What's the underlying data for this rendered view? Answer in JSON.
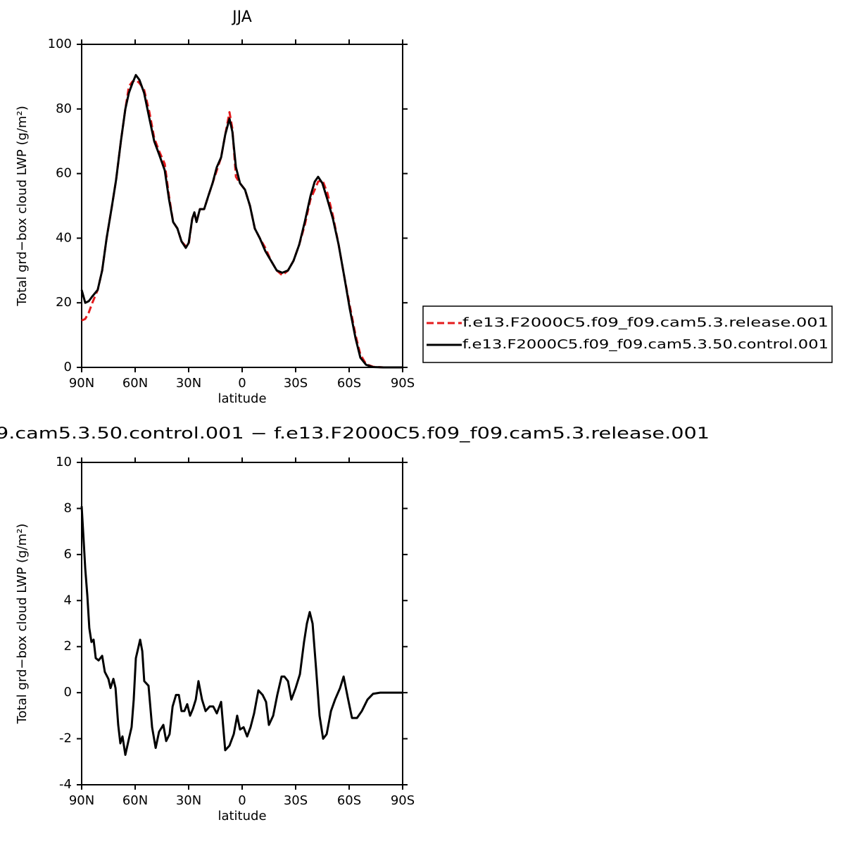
{
  "chart_data": [
    {
      "type": "line",
      "title": "JJA",
      "x_label": "latitude",
      "y_label": "Total grd−box cloud LWP (g/m²)",
      "x": [
        90,
        88,
        86,
        84,
        81,
        78.5,
        76,
        73,
        70.7,
        68,
        65.5,
        63.5,
        61.5,
        59.6,
        57.6,
        55,
        52,
        49.3,
        46.6,
        43.4,
        41,
        38.7,
        36.3,
        34,
        31.6,
        30,
        28,
        26.8,
        25.6,
        23.7,
        21.3,
        19,
        16.6,
        14.2,
        11.8,
        9.5,
        7.1,
        5.5,
        3.5,
        1.2,
        -1.6,
        -4.4,
        -7.1,
        -9.9,
        -13,
        -16.2,
        -19.4,
        -22.5,
        -25.7,
        -28.8,
        -32,
        -35.1,
        -38.3,
        -40.7,
        -42.6,
        -45,
        -47.8,
        -50.9,
        -54.1,
        -57.3,
        -60.4,
        -63.6,
        -66.3,
        -69.5,
        -73.4,
        -79.3,
        -90
      ],
      "series": [
        {
          "name": "f.e13.F2000C5.f09_f09.cam5.3.release.001",
          "color": "#e41a1c",
          "line_style": "dashed",
          "values": [
            14.5,
            15,
            17,
            20,
            24,
            30,
            40,
            50,
            58,
            70,
            80,
            87,
            88.5,
            89,
            88,
            86,
            79,
            71,
            67,
            63,
            53,
            45,
            43,
            39,
            37.5,
            38,
            46,
            48,
            45,
            49,
            49,
            53,
            57,
            61,
            65,
            72,
            79,
            74,
            59,
            57,
            55,
            50,
            43,
            40,
            37,
            33,
            30,
            28.5,
            30,
            33,
            38,
            44,
            52,
            55,
            57.5,
            58,
            54,
            47,
            38,
            28,
            19,
            10,
            4,
            1,
            0.2,
            0,
            0
          ]
        },
        {
          "name": "f.e13.F2000C5.f09_f09.cam5.3.50.control.001",
          "color": "#000000",
          "line_style": "solid",
          "values": [
            24,
            20,
            20.5,
            22,
            24,
            30,
            40,
            50,
            58,
            70,
            80,
            85,
            88,
            90.5,
            89,
            85,
            77,
            70,
            66,
            61,
            52,
            45,
            43,
            39,
            37,
            38.5,
            46,
            48,
            45,
            49,
            49,
            53,
            57,
            62,
            65,
            72,
            77,
            73,
            62,
            57,
            55,
            50,
            43,
            40,
            36,
            33,
            30,
            29.3,
            30,
            33,
            38,
            45,
            53,
            57.5,
            59,
            57,
            52,
            46,
            38,
            28,
            18,
            9,
            3,
            0.8,
            0.1,
            0,
            0
          ]
        }
      ],
      "xlim": [
        90,
        -90
      ],
      "xticks": [
        {
          "value": 90,
          "label": "90N"
        },
        {
          "value": 60,
          "label": "60N"
        },
        {
          "value": 30,
          "label": "30N"
        },
        0,
        {
          "value": -30,
          "label": "30S"
        },
        {
          "value": -60,
          "label": "60S"
        },
        {
          "value": -90,
          "label": "90S"
        }
      ],
      "ylim": [
        0,
        100
      ],
      "yticks": [
        0,
        20,
        40,
        60,
        80,
        100
      ],
      "legend": "right"
    },
    {
      "type": "line",
      "title": "9.cam5.3.50.control.001 − f.e13.F2000C5.f09_f09.cam5.3.release.001",
      "x_label": "latitude",
      "y_label": "Total grd−box cloud LWP (g/m²)",
      "x": [
        90,
        88.8,
        88,
        86.8,
        85.7,
        84.5,
        83.3,
        82.1,
        80.5,
        78.5,
        77,
        75,
        73.8,
        72.2,
        71,
        69.5,
        68.3,
        67.1,
        65.5,
        63.5,
        62,
        60.8,
        59.6,
        58.4,
        57.2,
        56,
        54.9,
        52.5,
        50.5,
        48.5,
        46.6,
        44.2,
        42.6,
        40.7,
        39,
        37.1,
        35.5,
        34,
        32.4,
        30.8,
        29.2,
        27.6,
        26,
        24.5,
        22.5,
        20.5,
        18.2,
        16.2,
        14.2,
        11.8,
        9.5,
        7.1,
        4.7,
        2.8,
        1.2,
        -0.8,
        -2.8,
        -4.7,
        -6.7,
        -9.1,
        -11.5,
        -13.4,
        -15,
        -17.4,
        -19.7,
        -22.1,
        -23.7,
        -25.7,
        -27.6,
        -30,
        -32.4,
        -34.7,
        -36.3,
        -37.9,
        -39.5,
        -41.5,
        -43.4,
        -45.4,
        -47.4,
        -49.8,
        -52.1,
        -54.9,
        -56.9,
        -59.2,
        -61.6,
        -64.4,
        -67.1,
        -70.3,
        -73.4,
        -77.4,
        -90
      ],
      "color": "#000000",
      "values": [
        8.1,
        6.5,
        5.4,
        4.2,
        2.8,
        2.2,
        2.3,
        1.5,
        1.4,
        1.6,
        0.9,
        0.6,
        0.2,
        0.6,
        0.2,
        -1.4,
        -2.2,
        -1.9,
        -2.7,
        -2.0,
        -1.5,
        -0.3,
        1.5,
        1.9,
        2.3,
        1.8,
        0.5,
        0.3,
        -1.5,
        -2.4,
        -1.7,
        -1.4,
        -2.1,
        -1.8,
        -0.6,
        -0.1,
        -0.1,
        -0.8,
        -0.8,
        -0.5,
        -1.0,
        -0.7,
        -0.3,
        0.5,
        -0.3,
        -0.8,
        -0.6,
        -0.6,
        -0.9,
        -0.4,
        -2.5,
        -2.3,
        -1.8,
        -1.0,
        -1.6,
        -1.5,
        -1.9,
        -1.5,
        -0.9,
        0.1,
        -0.1,
        -0.4,
        -1.4,
        -1.0,
        -0.1,
        0.7,
        0.7,
        0.5,
        -0.3,
        0.2,
        0.8,
        2.2,
        3.0,
        3.5,
        3.0,
        1.0,
        -1.0,
        -2.0,
        -1.8,
        -0.8,
        -0.3,
        0.2,
        0.7,
        -0.2,
        -1.1,
        -1.1,
        -0.8,
        -0.3,
        -0.05,
        0,
        0
      ],
      "xlim": [
        90,
        -90
      ],
      "xticks": [
        {
          "value": 90,
          "label": "90N"
        },
        {
          "value": 60,
          "label": "60N"
        },
        {
          "value": 30,
          "label": "30N"
        },
        0,
        {
          "value": -30,
          "label": "30S"
        },
        {
          "value": -60,
          "label": "60S"
        },
        {
          "value": -90,
          "label": "90S"
        }
      ],
      "ylim": [
        -4,
        10
      ],
      "yticks": [
        -4,
        -2,
        0,
        2,
        4,
        6,
        8,
        10
      ]
    }
  ]
}
